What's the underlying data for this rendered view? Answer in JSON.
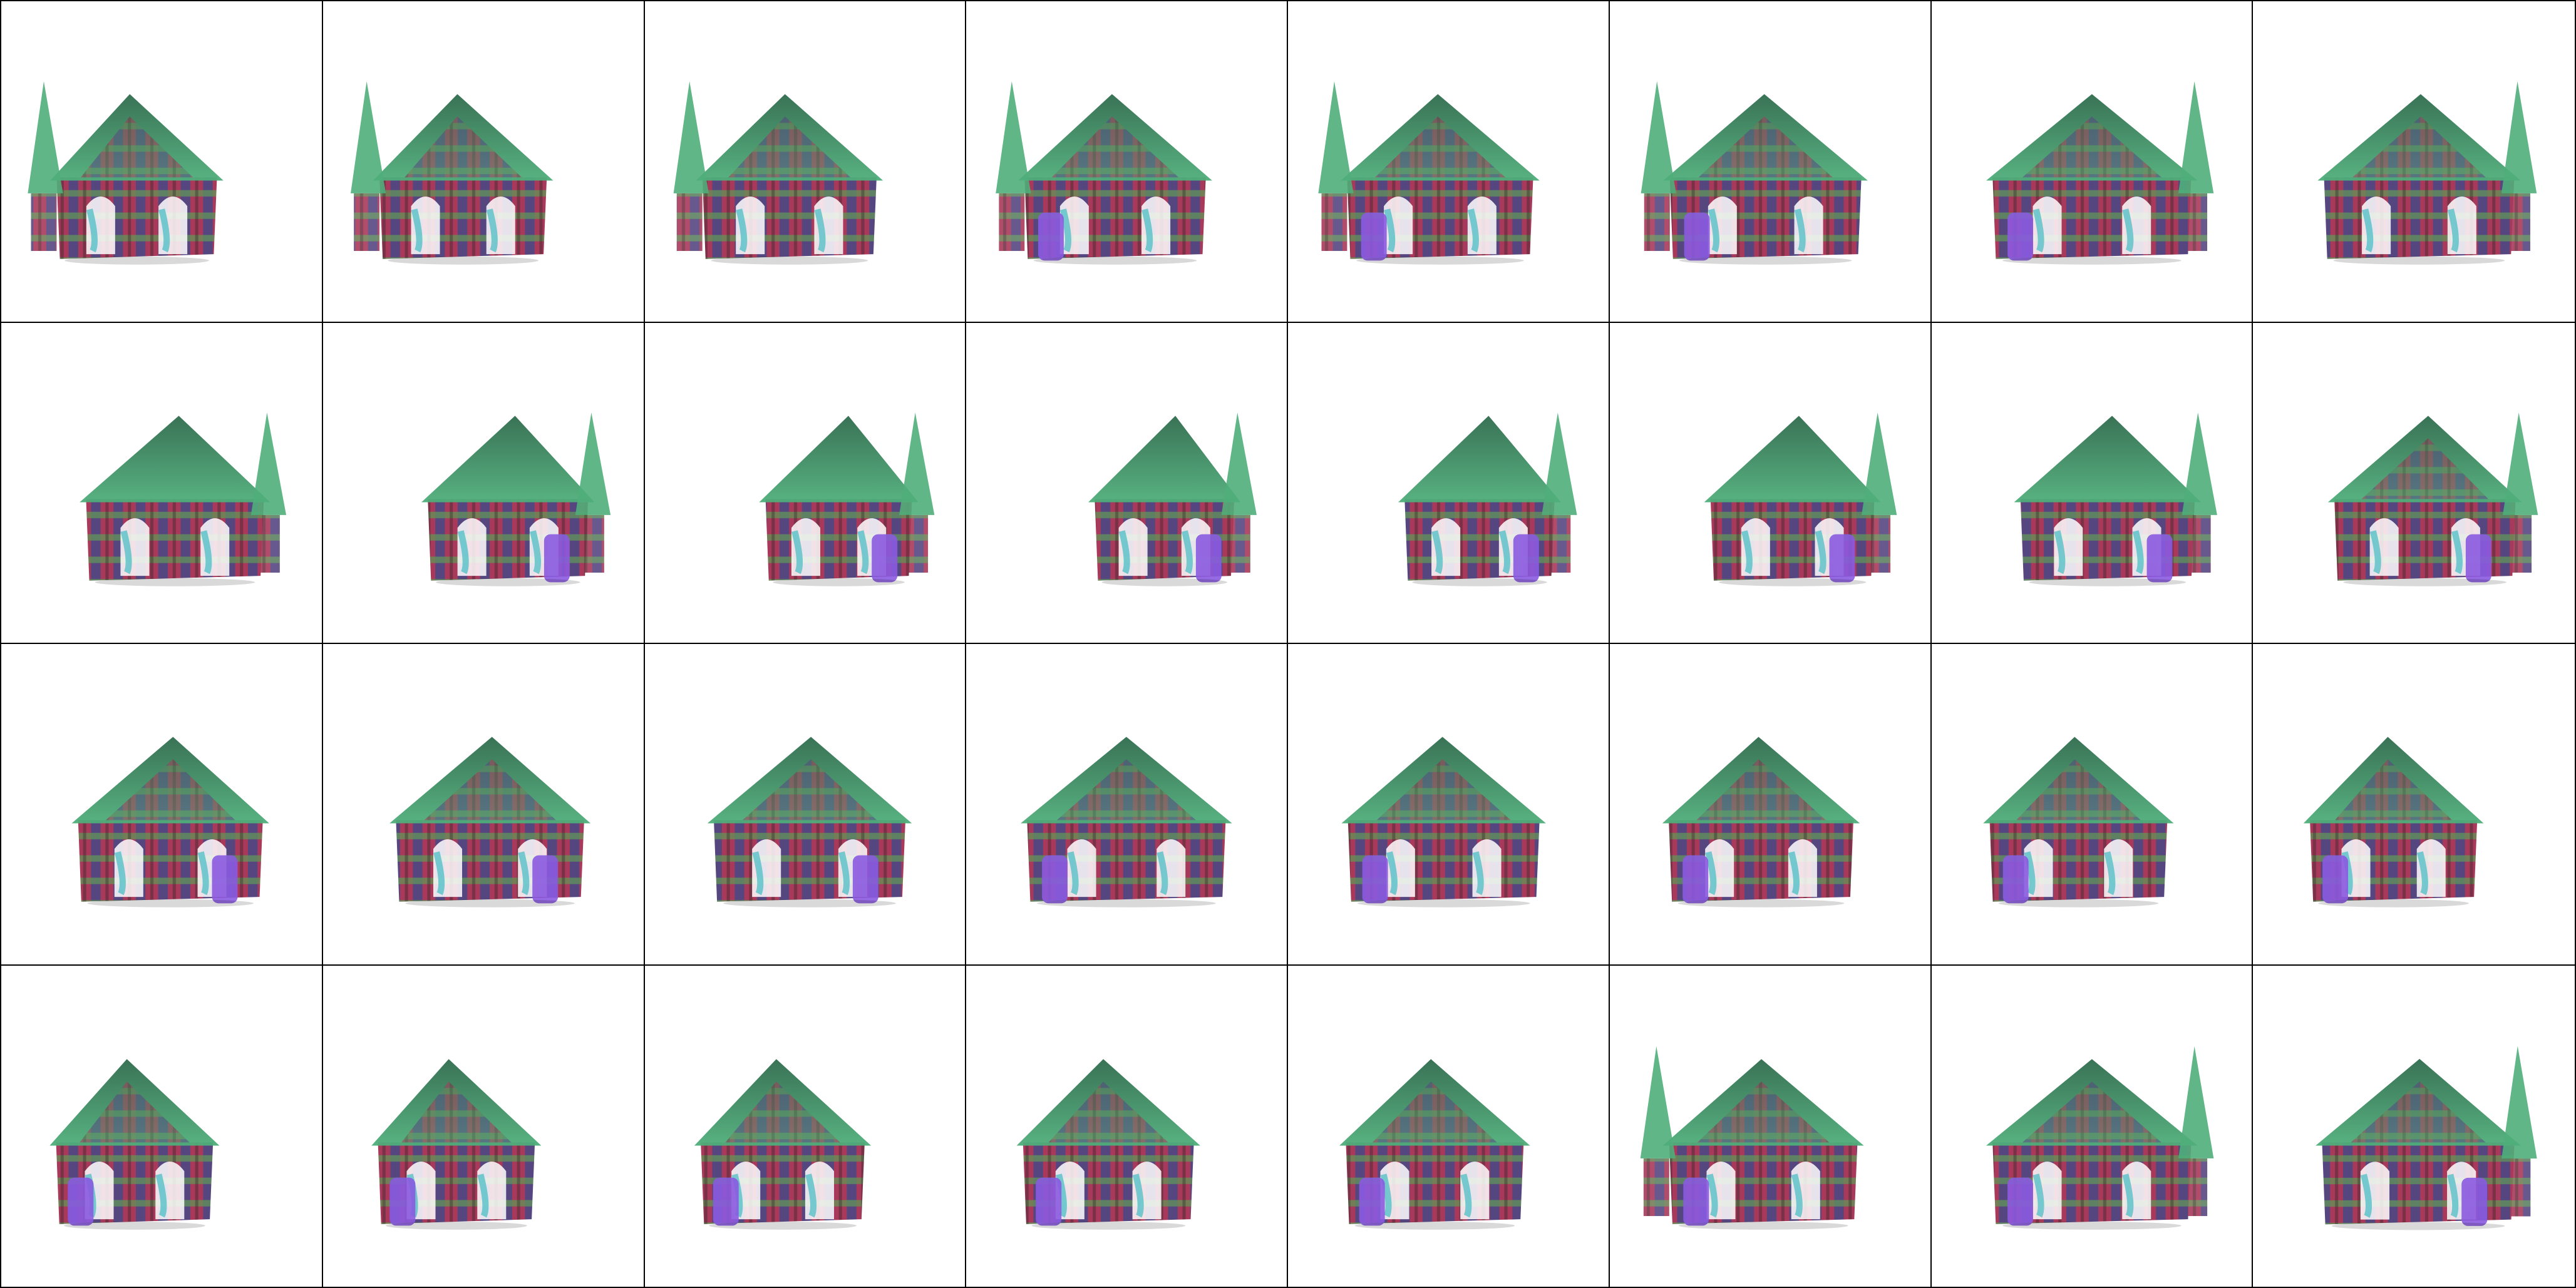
{
  "grid": {
    "rows": 4,
    "cols": 8,
    "subject": "house-render",
    "colors": {
      "roof_green": "#4fae7a",
      "roof_dark": "#2f6b4d",
      "plaid_red": "#a8395a",
      "plaid_blue": "#3b4a8c",
      "plaid_green": "#5f9a55",
      "door_purple": "#8a5ae0",
      "curtain_cyan": "#56c0c8",
      "grid_line": "#000000"
    }
  },
  "frames": [
    {
      "yaw": -0.55,
      "left_peak": 1,
      "door": 0
    },
    {
      "yaw": -0.45,
      "left_peak": 1,
      "door": 0
    },
    {
      "yaw": -0.35,
      "left_peak": 1,
      "door": 0
    },
    {
      "yaw": -0.25,
      "left_peak": 1,
      "door": 1
    },
    {
      "yaw": -0.18,
      "left_peak": 1,
      "door": 1
    },
    {
      "yaw": -0.1,
      "left_peak": 1,
      "door": 1
    },
    {
      "yaw": 0.0,
      "left_peak": 1,
      "door": 1
    },
    {
      "yaw": 0.12,
      "left_peak": 1,
      "door": 0
    },
    {
      "yaw": 0.3,
      "left_peak": 0,
      "door": 0
    },
    {
      "yaw": 0.55,
      "left_peak": 0,
      "door": 1
    },
    {
      "yaw": 0.75,
      "left_peak": 0,
      "door": 1
    },
    {
      "yaw": 0.85,
      "left_peak": 0,
      "door": 1
    },
    {
      "yaw": 0.7,
      "left_peak": 0,
      "door": 1
    },
    {
      "yaw": 0.5,
      "left_peak": 0,
      "door": 1
    },
    {
      "yaw": 0.35,
      "left_peak": 0,
      "door": 1
    },
    {
      "yaw": 0.25,
      "left_peak": 0,
      "door": 1
    },
    {
      "yaw": 0.2,
      "left_peak": 0,
      "door": 1
    },
    {
      "yaw": 0.15,
      "left_peak": 0,
      "door": 1
    },
    {
      "yaw": 0.1,
      "left_peak": 0,
      "door": 1
    },
    {
      "yaw": 0.0,
      "left_peak": 0,
      "door": 1
    },
    {
      "yaw": -0.1,
      "left_peak": 0,
      "door": 1
    },
    {
      "yaw": -0.2,
      "left_peak": 0,
      "door": 1
    },
    {
      "yaw": -0.3,
      "left_peak": 0,
      "door": 1
    },
    {
      "yaw": -0.45,
      "left_peak": 0,
      "door": 1
    },
    {
      "yaw": -0.6,
      "left_peak": 0,
      "door": 1
    },
    {
      "yaw": -0.6,
      "left_peak": 0,
      "door": 1
    },
    {
      "yaw": -0.5,
      "left_peak": 0,
      "door": 1
    },
    {
      "yaw": -0.4,
      "left_peak": 0,
      "door": 1
    },
    {
      "yaw": -0.3,
      "left_peak": 0,
      "door": 1
    },
    {
      "yaw": -0.15,
      "left_peak": 1,
      "door": 1
    },
    {
      "yaw": 0.0,
      "left_peak": 1,
      "door": 1
    },
    {
      "yaw": 0.1,
      "left_peak": 1,
      "door": 1
    }
  ]
}
